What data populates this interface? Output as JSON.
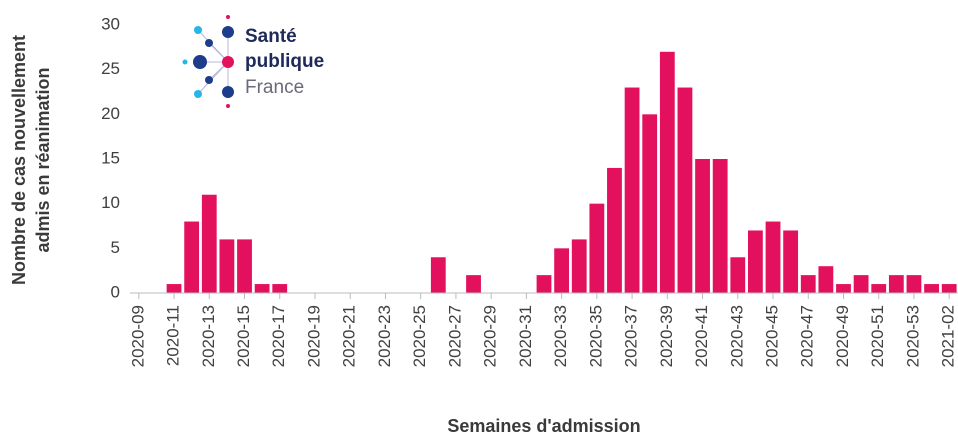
{
  "chart_data": {
    "type": "bar",
    "logo": [
      "Santé",
      "publique",
      "France"
    ],
    "ylabel": [
      "Nombre de cas nouvellement",
      "admis en réanimation"
    ],
    "xlabel": "Semaines d'admission",
    "categories": [
      "2020-09",
      null,
      "2020-11",
      null,
      "2020-13",
      null,
      "2020-15",
      null,
      "2020-17",
      null,
      "2020-19",
      null,
      "2020-21",
      null,
      "2020-23",
      null,
      "2020-25",
      null,
      "2020-27",
      null,
      "2020-29",
      null,
      "2020-31",
      null,
      "2020-33",
      null,
      "2020-35",
      null,
      "2020-37",
      null,
      "2020-39",
      null,
      "2020-41",
      null,
      "2020-43",
      null,
      "2020-45",
      null,
      "2020-47",
      null,
      "2020-49",
      null,
      "2020-51",
      null,
      "2020-53",
      null,
      "2021-02"
    ],
    "values": [
      0,
      0,
      1,
      8,
      11,
      6,
      6,
      1,
      1,
      0,
      0,
      0,
      0,
      0,
      0,
      0,
      0,
      4,
      0,
      2,
      0,
      0,
      0,
      2,
      5,
      6,
      10,
      14,
      23,
      20,
      27,
      23,
      15,
      15,
      4,
      7,
      8,
      7,
      2,
      3,
      1,
      2,
      1,
      2,
      2,
      1,
      1
    ],
    "color": "#e2105d",
    "ylim": [
      0,
      30
    ],
    "yticks": [
      0,
      5,
      10,
      15,
      20,
      25,
      30
    ],
    "grid": false
  }
}
